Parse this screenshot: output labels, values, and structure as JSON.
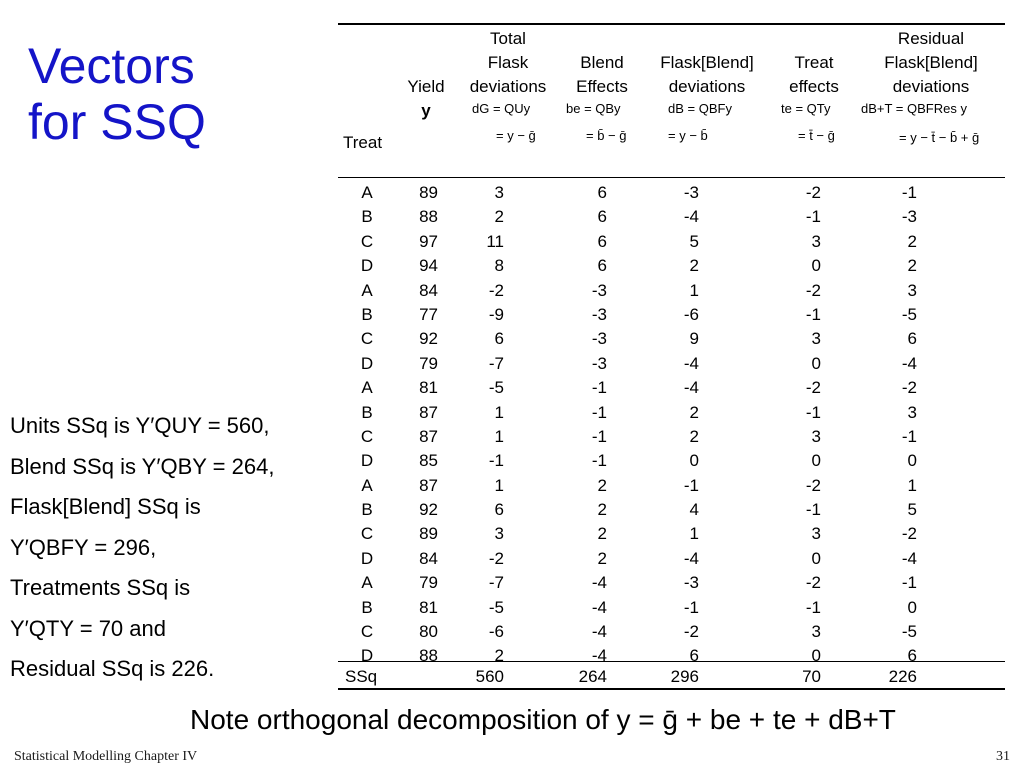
{
  "title": {
    "line1": "Vectors",
    "line2": "for SSQ"
  },
  "table": {
    "headers": {
      "treat": "Treat",
      "yield": [
        "Yield",
        "y"
      ],
      "total": [
        "Total",
        "Flask",
        "deviations"
      ],
      "blend": [
        "Blend",
        "Effects"
      ],
      "flask": [
        "Flask[Blend]",
        "deviations"
      ],
      "treatfx": [
        "Treat",
        "effects"
      ],
      "resid": [
        "Residual",
        "Flask[Blend]",
        "deviations"
      ]
    },
    "formulas": {
      "total": [
        "dG = QUy",
        "= y − ḡ"
      ],
      "blend": [
        "be = QBy",
        "= b̄ − ḡ"
      ],
      "flask": [
        "dB = QBFy",
        "= y − b̄"
      ],
      "treatfx": [
        "te = QTy",
        "= t̄ − ḡ"
      ],
      "resid": [
        "dB+T = QBFRes y",
        "= y − t̄ − b̄ + ḡ"
      ]
    },
    "treat": [
      "A",
      "B",
      "C",
      "D",
      "A",
      "B",
      "C",
      "D",
      "A",
      "B",
      "C",
      "D",
      "A",
      "B",
      "C",
      "D",
      "A",
      "B",
      "C",
      "D"
    ],
    "yield": [
      "89",
      "88",
      "97",
      "94",
      "84",
      "77",
      "92",
      "79",
      "81",
      "87",
      "87",
      "85",
      "87",
      "92",
      "89",
      "84",
      "79",
      "81",
      "80",
      "88"
    ],
    "total": [
      "3",
      "2",
      "11",
      "8",
      "-2",
      "-9",
      "6",
      "-7",
      "-5",
      "1",
      "1",
      "-1",
      "1",
      "6",
      "3",
      "-2",
      "-7",
      "-5",
      "-6",
      "2"
    ],
    "blend": [
      "6",
      "6",
      "6",
      "6",
      "-3",
      "-3",
      "-3",
      "-3",
      "-1",
      "-1",
      "-1",
      "-1",
      "2",
      "2",
      "2",
      "2",
      "-4",
      "-4",
      "-4",
      "-4"
    ],
    "flask": [
      "-3",
      "-4",
      "5",
      "2",
      "1",
      "-6",
      "9",
      "-4",
      "-4",
      "2",
      "2",
      "0",
      "-1",
      "4",
      "1",
      "-4",
      "-3",
      "-1",
      "-2",
      "6"
    ],
    "treatfx": [
      "-2",
      "-1",
      "3",
      "0",
      "-2",
      "-1",
      "3",
      "0",
      "-2",
      "-1",
      "3",
      "0",
      "-2",
      "-1",
      "3",
      "0",
      "-2",
      "-1",
      "3",
      "0"
    ],
    "resid": [
      "-1",
      "-3",
      "2",
      "2",
      "3",
      "-5",
      "6",
      "-4",
      "-2",
      "3",
      "-1",
      "0",
      "1",
      "5",
      "-2",
      "-4",
      "-1",
      "0",
      "-5",
      "6"
    ],
    "ssq": {
      "label": "SSq",
      "total": "560",
      "blend": "264",
      "flask": "296",
      "treatfx": "70",
      "resid": "226"
    }
  },
  "left_text": [
    "Units SSq is Y′QUY = 560,",
    "Blend SSq is Y′QBY = 264,",
    "Flask[Blend] SSq is",
    "Y′QBFY = 296,",
    "Treatments SSq is",
    "Y′QTY = 70 and",
    "Residual SSq is 226."
  ],
  "note": "Note orthogonal decomposition of  y = ḡ + be + te + dB+T",
  "footer": {
    "left": "Statistical Modelling   Chapter IV",
    "page": "31"
  }
}
